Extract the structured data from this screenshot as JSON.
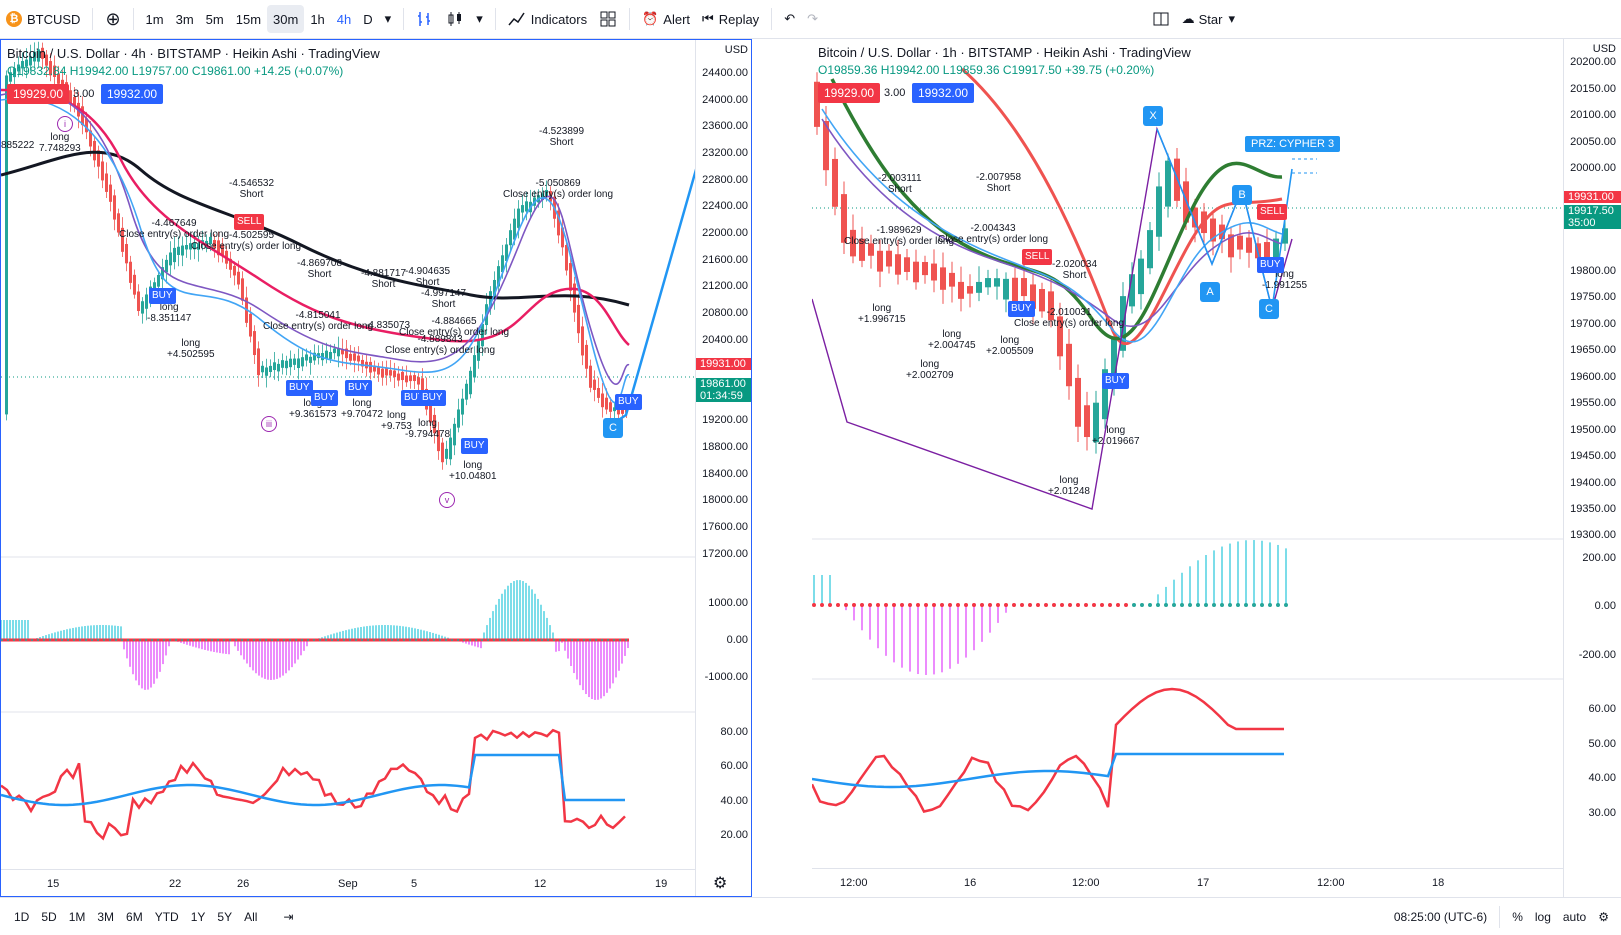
{
  "toolbar": {
    "symbol": "BTCUSD",
    "btc_glyph": "₿",
    "add_icon": "⊕",
    "intervals": [
      "1m",
      "3m",
      "5m",
      "15m",
      "30m",
      "1h",
      "4h",
      "D"
    ],
    "active_interval": "30m",
    "indicators_label": "Indicators",
    "alert_label": "Alert",
    "replay_label": "Replay",
    "layout_name": "Star"
  },
  "left": {
    "title": "Bitcoin / U.S. Dollar · 4h · BITSTAMP · Heikin Ashi · TradingView",
    "ohlc": "O19832.84 H19942.00 L19757.00 C19861.00 +14.25 (+0.07%)",
    "sell_price": "19929.00",
    "spread": "3.00",
    "buy_price": "19932.00",
    "axis_currency": "USD",
    "price_axis": [
      "24400.00",
      "24000.00",
      "23600.00",
      "23200.00",
      "22800.00",
      "22400.00",
      "22000.00",
      "21600.00",
      "21200.00",
      "20800.00",
      "20400.00",
      "19931.00",
      "19861.00",
      "01:34:59",
      "19200.00",
      "18800.00",
      "18400.00",
      "18000.00",
      "17600.00",
      "17200.00"
    ],
    "macd_axis": [
      "1000.00",
      "0.00",
      "-1000.00"
    ],
    "rsi_axis": [
      "80.00",
      "60.00",
      "40.00",
      "20.00"
    ],
    "time_axis": [
      "15",
      "22",
      "26",
      "Sep",
      "5",
      "12",
      "19"
    ],
    "annotations": [
      {
        "t": "-4.546532\nShort"
      },
      {
        "t": "-4.467649\nClose entry(s) order long"
      },
      {
        "t": "-4.502595"
      },
      {
        "t": "Close entry(s) order long"
      },
      {
        "t": "-4.869708\nShort"
      },
      {
        "t": "-4.881717\nShort"
      },
      {
        "t": "-4.904635\nShort"
      },
      {
        "t": "-4.997147\nShort"
      },
      {
        "t": "-4.815041\nClose entry(s) order long"
      },
      {
        "t": "-4.835073"
      },
      {
        "t": "-4.884665\nClose entry(s) order long"
      },
      {
        "t": "-4.889843\nClose entry(s) order long"
      },
      {
        "t": "-4.523899\nShort"
      },
      {
        "t": "-5.050869\nClose entry(s) order long"
      },
      {
        "t": "long\n-8.351147"
      },
      {
        "t": "long\n+4.502595"
      },
      {
        "t": "long\n+9.361573"
      },
      {
        "t": "long\n+9.70472"
      },
      {
        "t": "long\n+9.753"
      },
      {
        "t": "long\n-9.794478"
      },
      {
        "t": "long\n+10.04801"
      },
      {
        "t": "long\n7.748293"
      },
      {
        "t": "885222"
      }
    ],
    "badges": [
      "BUY",
      "SELL",
      "BUY",
      "BUY",
      "BUY",
      "BUY",
      "BUY",
      "BUY",
      "BUY"
    ],
    "points": [
      "C"
    ],
    "circles": [
      "i",
      "iii",
      "v"
    ]
  },
  "right": {
    "title": "Bitcoin / U.S. Dollar · 1h · BITSTAMP · Heikin Ashi · TradingView",
    "ohlc": "O19859.36 H19942.00 L19859.36 C19917.50 +39.75 (+0.20%)",
    "sell_price": "19929.00",
    "spread": "3.00",
    "buy_price": "19932.00",
    "axis_currency": "USD",
    "price_axis": [
      "20200.00",
      "20150.00",
      "20100.00",
      "20050.00",
      "20000.00",
      "19931.00",
      "19917.50",
      "35:00",
      "19800.00",
      "19750.00",
      "19700.00",
      "19650.00",
      "19600.00",
      "19550.00",
      "19500.00",
      "19450.00",
      "19400.00",
      "19350.00",
      "19300.00"
    ],
    "macd_axis": [
      "200.00",
      "0.00",
      "-200.00"
    ],
    "rsi_axis": [
      "60.00",
      "50.00",
      "40.00",
      "30.00"
    ],
    "time_axis": [
      "12:00",
      "16",
      "12:00",
      "17",
      "12:00",
      "18"
    ],
    "annotations": [
      {
        "t": "-2.003111\nShort"
      },
      {
        "t": "-2.007958\nShort"
      },
      {
        "t": "-1.989629\nClose entry(s) order long"
      },
      {
        "t": "-2.004343\nClose entry(s) order long"
      },
      {
        "t": "-2.020034\nShort"
      },
      {
        "t": "-2.010031\nClose entry(s) order long"
      },
      {
        "t": "long\n+1.996715"
      },
      {
        "t": "long\n+2.004745"
      },
      {
        "t": "long\n+2.002709"
      },
      {
        "t": "long\n+2.005509"
      },
      {
        "t": "long\n+2.019667"
      },
      {
        "t": "long\n+2.01248"
      },
      {
        "t": "long\n-1.991255"
      }
    ],
    "badges": [
      "SELL",
      "BUY",
      "BUY",
      "SELL",
      "BUY"
    ],
    "points": [
      "X",
      "A",
      "B",
      "C"
    ],
    "prz": "PRZ: CYPHER 3"
  },
  "bottom": {
    "ranges": [
      "1D",
      "5D",
      "1M",
      "3M",
      "6M",
      "YTD",
      "1Y",
      "5Y",
      "All"
    ],
    "clock": "08:25:00 (UTC-6)",
    "percent": "%",
    "log": "log",
    "auto": "auto"
  },
  "colors": {
    "red": "#f23645",
    "blue": "#2962ff",
    "green": "#089981",
    "purple": "#9c27b0",
    "teal": "#26c6da",
    "pink": "#e040fb",
    "black": "#131722"
  }
}
